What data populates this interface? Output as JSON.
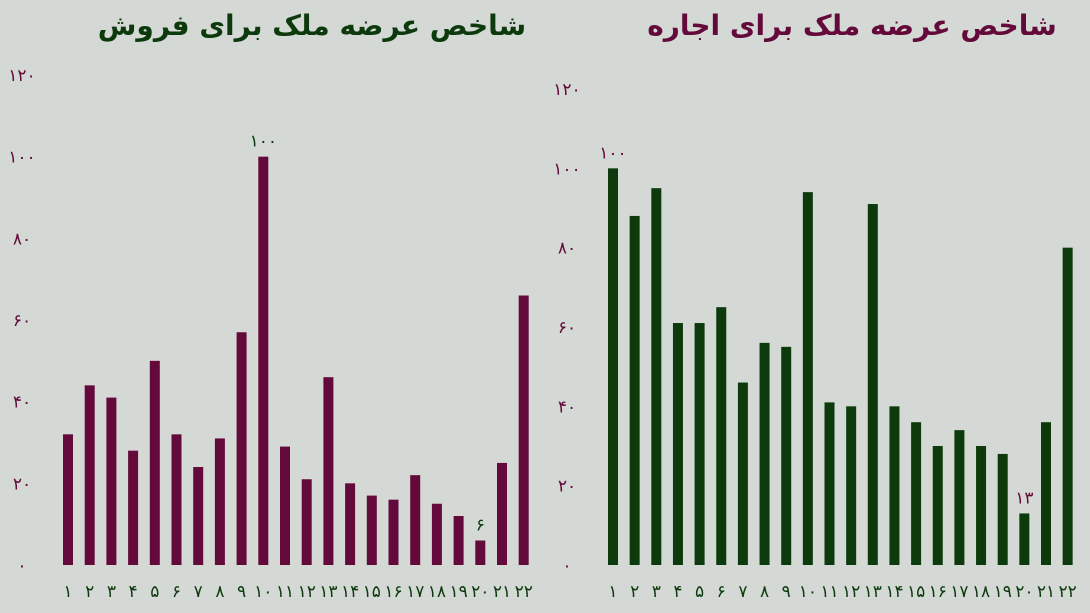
{
  "colors": {
    "background": "#d5d9d5",
    "sale": "#640a3a",
    "rent": "#0c3a0d"
  },
  "chart_data": [
    {
      "type": "bar",
      "title": "شاخص عرضه ملک برای فروش",
      "xlabel": "",
      "ylabel": "",
      "categories": [
        "۱",
        "۲",
        "۳",
        "۴",
        "۵",
        "۶",
        "۷",
        "۸",
        "۹",
        "۱۰",
        "۱۱",
        "۱۲",
        "۱۳",
        "۱۴",
        "۱۵",
        "۱۶",
        "۱۷",
        "۱۸",
        "۱۹",
        "۲۰",
        "۲۱",
        "۲۲"
      ],
      "values": [
        32,
        44,
        41,
        28,
        50,
        32,
        24,
        31,
        57,
        100,
        29,
        21,
        46,
        20,
        17,
        16,
        22,
        15,
        12,
        6,
        25,
        66
      ],
      "ylim": [
        0,
        120
      ],
      "yticks": [
        "۰",
        "۲۰",
        "۴۰",
        "۶۰",
        "۸۰",
        "۱۰۰",
        "۱۲۰"
      ],
      "data_labels": [
        {
          "index": 9,
          "text": "۱۰۰"
        },
        {
          "index": 19,
          "text": "۶"
        }
      ],
      "grid": false,
      "color": "#640a3a"
    },
    {
      "type": "bar",
      "title": "شاخص عرضه ملک برای اجاره",
      "xlabel": "",
      "ylabel": "",
      "categories": [
        "۱",
        "۲",
        "۳",
        "۴",
        "۵",
        "۶",
        "۷",
        "۸",
        "۹",
        "۱۰",
        "۱۱",
        "۱۲",
        "۱۳",
        "۱۴",
        "۱۵",
        "۱۶",
        "۱۷",
        "۱۸",
        "۱۹",
        "۲۰",
        "۲۱",
        "۲۲"
      ],
      "values": [
        100,
        88,
        95,
        61,
        61,
        65,
        46,
        56,
        55,
        94,
        41,
        40,
        91,
        40,
        36,
        30,
        34,
        30,
        28,
        13,
        36,
        80
      ],
      "ylim": [
        0,
        120
      ],
      "yticks": [
        "۰",
        "۲۰",
        "۴۰",
        "۶۰",
        "۸۰",
        "۱۰۰",
        "۱۲۰"
      ],
      "data_labels": [
        {
          "index": 0,
          "text": "۱۰۰"
        },
        {
          "index": 19,
          "text": "۱۳"
        }
      ],
      "grid": false,
      "color": "#0c3a0d"
    }
  ]
}
